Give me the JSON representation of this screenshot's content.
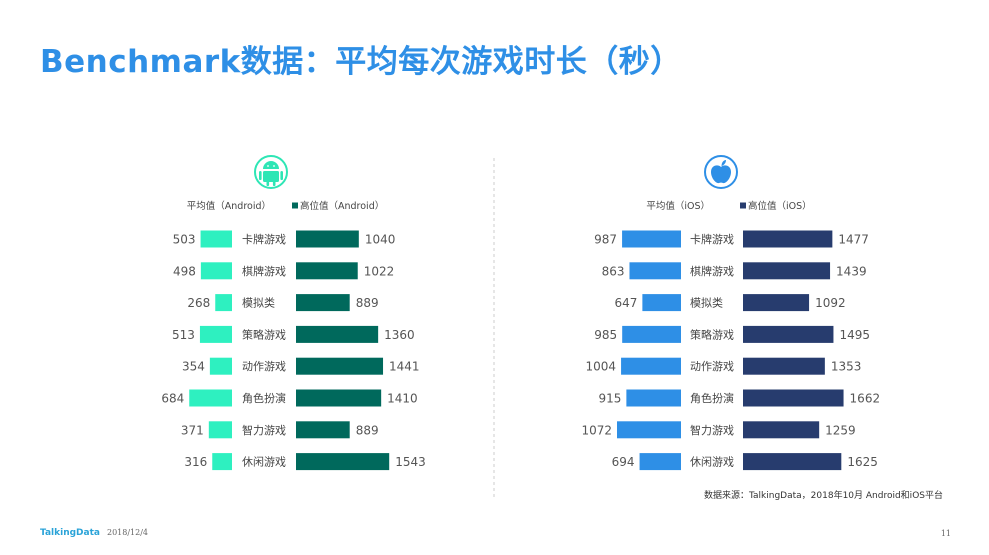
{
  "title": "Benchmark数据：平均每次游戏时长（秒）",
  "source": "数据来源：TalkingData，2018年10月 Android和iOS平台",
  "footer": {
    "brand": "TalkingData",
    "date": "2018/12/4",
    "page": "11"
  },
  "colors": {
    "title": "#2e8fe6",
    "android_avg": "#2ef0c0",
    "android_high": "#00695c",
    "ios_avg": "#2e8fe6",
    "ios_high": "#273c6e"
  },
  "chart_data": [
    {
      "type": "bar",
      "platform_icon": "android-icon",
      "categories": [
        "卡牌游戏",
        "棋牌游戏",
        "模拟类",
        "策略游戏",
        "动作游戏",
        "角色扮演",
        "智力游戏",
        "休闲游戏"
      ],
      "series": [
        {
          "name": "平均值（Android）",
          "values": [
            503,
            498,
            268,
            513,
            354,
            684,
            371,
            316
          ]
        },
        {
          "name": "高位值（Android）",
          "values": [
            1040,
            1022,
            889,
            1360,
            1441,
            1410,
            889,
            1543
          ]
        }
      ]
    },
    {
      "type": "bar",
      "platform_icon": "apple-icon",
      "categories": [
        "卡牌游戏",
        "棋牌游戏",
        "模拟类",
        "策略游戏",
        "动作游戏",
        "角色扮演",
        "智力游戏",
        "休闲游戏"
      ],
      "series": [
        {
          "name": "平均值（iOS）",
          "values": [
            987,
            863,
            647,
            985,
            1004,
            915,
            1072,
            694
          ]
        },
        {
          "name": "高位值（iOS）",
          "values": [
            1477,
            1439,
            1092,
            1495,
            1353,
            1662,
            1259,
            1625
          ]
        }
      ]
    }
  ]
}
